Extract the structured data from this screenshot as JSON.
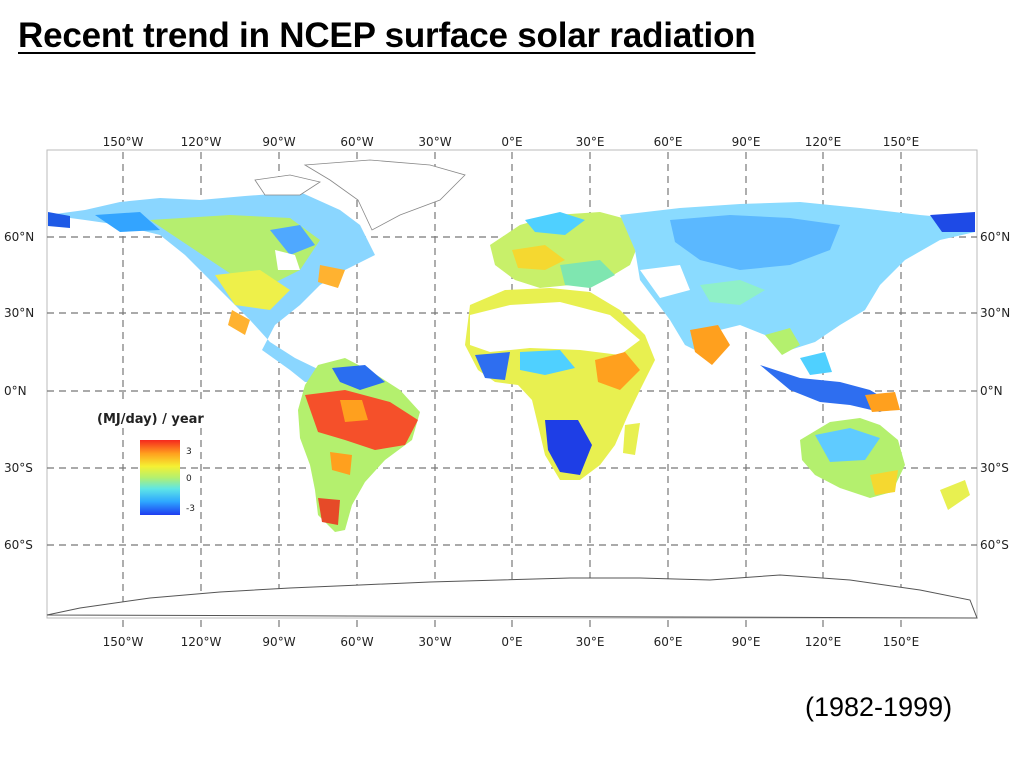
{
  "title": "Recent trend in NCEP surface solar radiation",
  "period": "(1982-1999)",
  "map": {
    "longitude_labels": [
      "150°W",
      "120°W",
      "90°W",
      "60°W",
      "30°W",
      "0°E",
      "30°E",
      "60°E",
      "90°E",
      "120°E",
      "150°E"
    ],
    "latitude_labels": [
      "60°N",
      "30°N",
      "0°N",
      "30°S",
      "60°S"
    ],
    "legend": {
      "title": "(MJ/day) / year",
      "ticks": [
        "3",
        "0",
        "-3"
      ],
      "range": [
        -3,
        3
      ],
      "colors": [
        "#1e3cf0",
        "#2ea8ff",
        "#5fe6e6",
        "#b4f06e",
        "#f5f032",
        "#ffa01e",
        "#f5281e"
      ]
    }
  }
}
